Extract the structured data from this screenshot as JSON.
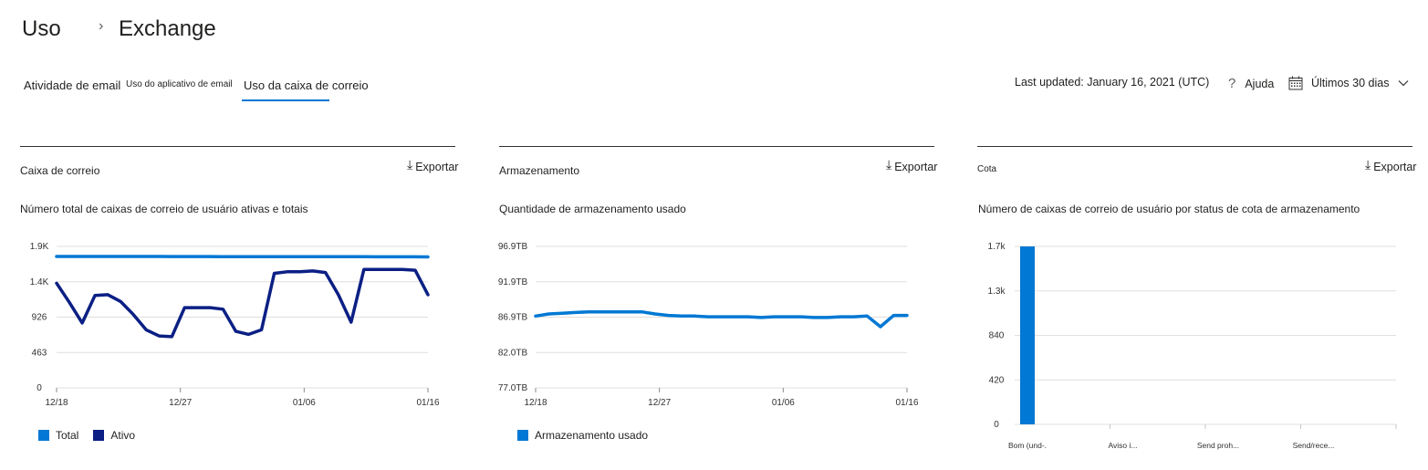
{
  "breadcrumb": {
    "root": "Uso",
    "separator": "›",
    "current": "Exchange"
  },
  "tabs": [
    {
      "label": "Atividade de email"
    },
    {
      "label": "Uso do aplicativo de email"
    },
    {
      "label": "Uso da caixa de correio",
      "selected": true
    }
  ],
  "header": {
    "last_updated": "Last updated: January 16, 2021 (UTC)",
    "help_label": "Ajuda",
    "period_label": "Últimos 30 dias"
  },
  "colors": {
    "accent": "#0078d4",
    "total": "#0078d4",
    "active": "#0b1f84",
    "storage": "#0078d4",
    "quota": "#0078d4"
  },
  "panels": [
    {
      "title": "Caixa de correio",
      "export": "Exportar",
      "chart_title": "Número total de caixas de correio de usuário ativas e totais"
    },
    {
      "title": "Armazenamento",
      "export": "Exportar",
      "chart_title": "Quantidade de armazenamento usado"
    },
    {
      "title": "Cota",
      "export": "Exportar",
      "chart_title": "Número de caixas de correio de usuário por status de cota de armazenamento"
    }
  ],
  "chart_data": [
    {
      "type": "line",
      "ytick_labels": [
        "1.9K",
        "1.4K",
        "926",
        "463",
        "0"
      ],
      "ylim": [
        0,
        1852
      ],
      "xtick_labels": [
        "12/18",
        "12/27",
        "01/06",
        "01/16"
      ],
      "series": [
        {
          "name": "Total",
          "values": [
            1720,
            1720,
            1720,
            1720,
            1720,
            1720,
            1720,
            1720,
            1720,
            1719,
            1719,
            1719,
            1719,
            1718,
            1718,
            1718,
            1718,
            1718,
            1718,
            1718,
            1717,
            1717,
            1717,
            1717,
            1717,
            1716,
            1716,
            1716,
            1716,
            1715
          ]
        },
        {
          "name": "Ativo",
          "values": [
            1370,
            1120,
            850,
            1210,
            1220,
            1130,
            960,
            760,
            680,
            670,
            1050,
            1050,
            1050,
            1030,
            740,
            700,
            760,
            1500,
            1520,
            1520,
            1530,
            1510,
            1220,
            860,
            1550,
            1550,
            1550,
            1550,
            1540,
            1220
          ]
        }
      ]
    },
    {
      "type": "line",
      "ytick_labels": [
        "96.9TB",
        "91.9TB",
        "86.9TB",
        "82.0TB",
        "77.0TB"
      ],
      "ylim": [
        77.0,
        96.9
      ],
      "xtick_labels": [
        "12/18",
        "12/27",
        "01/06",
        "01/16"
      ],
      "series": [
        {
          "name": "Armazenamento usado",
          "values": [
            87.1,
            87.4,
            87.5,
            87.6,
            87.7,
            87.7,
            87.7,
            87.7,
            87.7,
            87.4,
            87.2,
            87.1,
            87.1,
            87.0,
            87.0,
            87.0,
            87.0,
            86.9,
            87.0,
            87.0,
            87.0,
            86.9,
            86.9,
            87.0,
            87.0,
            87.1,
            85.6,
            87.2,
            87.2
          ]
        }
      ]
    },
    {
      "type": "bar",
      "ytick_labels": [
        "1.7k",
        "1.3k",
        "840",
        "420",
        "0"
      ],
      "ylim": [
        0,
        1700
      ],
      "categories": [
        "Bom (und-.",
        "Aviso     i...",
        "Send    proh...",
        "Send/rece..."
      ],
      "values": [
        1700,
        0,
        0,
        0
      ]
    }
  ]
}
